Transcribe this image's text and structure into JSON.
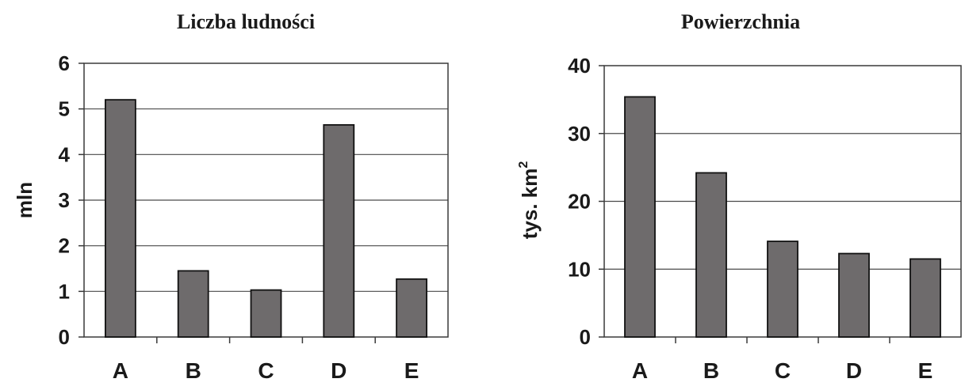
{
  "chart_data": [
    {
      "type": "bar",
      "title": "Liczba ludności",
      "ylabel": "mln",
      "categories": [
        "A",
        "B",
        "C",
        "D",
        "E"
      ],
      "values": [
        5.2,
        1.45,
        1.03,
        4.65,
        1.27
      ],
      "ylim": [
        0,
        6
      ],
      "yticks": [
        0,
        1,
        2,
        3,
        4,
        5,
        6
      ],
      "grid": true,
      "bar_color": "#6e6b6c"
    },
    {
      "type": "bar",
      "title": "Powierzchnia",
      "ylabel": "tys. km",
      "ylabel_superscript": "2",
      "categories": [
        "A",
        "B",
        "C",
        "D",
        "E"
      ],
      "values": [
        35.4,
        24.2,
        14.1,
        12.3,
        11.5
      ],
      "ylim": [
        0,
        40
      ],
      "yticks": [
        0,
        10,
        20,
        30,
        40
      ],
      "grid": true,
      "bar_color": "#6e6b6c"
    }
  ]
}
